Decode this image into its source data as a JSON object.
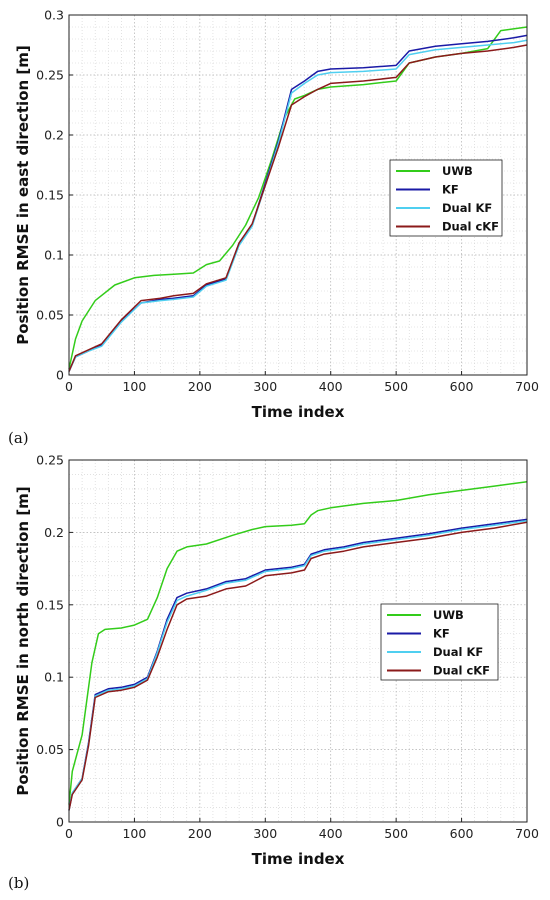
{
  "colors": {
    "UWB": "#33cc1a",
    "KF": "#1a1aa6",
    "Dual KF": "#4fcff0",
    "Dual cKF": "#8b1a1a"
  },
  "chart_data": [
    {
      "panel_label": "(a)",
      "type": "line",
      "xlabel": "Time index",
      "ylabel": "Position RMSE in east  direction [m]",
      "xlim": [
        0,
        700
      ],
      "ylim": [
        0,
        0.3
      ],
      "xticks": [
        "0",
        "100",
        "200",
        "300",
        "400",
        "500",
        "600",
        "700"
      ],
      "yticks": [
        "0",
        "0.05",
        "0.1",
        "0.15",
        "0.2",
        "0.25",
        "0.3"
      ],
      "grid": true,
      "legend_position": "right",
      "legend": [
        "UWB",
        "KF",
        "Dual KF",
        "Dual cKF"
      ],
      "series": [
        {
          "name": "UWB",
          "x": [
            0,
            10,
            20,
            40,
            70,
            100,
            130,
            160,
            190,
            210,
            230,
            250,
            270,
            290,
            310,
            330,
            345,
            360,
            380,
            400,
            450,
            500,
            520,
            560,
            600,
            640,
            660,
            700
          ],
          "y": [
            0.005,
            0.03,
            0.045,
            0.062,
            0.075,
            0.081,
            0.083,
            0.084,
            0.085,
            0.092,
            0.095,
            0.108,
            0.125,
            0.148,
            0.18,
            0.215,
            0.23,
            0.233,
            0.238,
            0.24,
            0.242,
            0.245,
            0.26,
            0.265,
            0.268,
            0.272,
            0.287,
            0.29
          ]
        },
        {
          "name": "KF",
          "x": [
            0,
            10,
            30,
            50,
            80,
            110,
            140,
            160,
            190,
            210,
            240,
            260,
            280,
            300,
            320,
            340,
            360,
            380,
            400,
            450,
            500,
            520,
            560,
            600,
            640,
            680,
            700
          ],
          "y": [
            0.003,
            0.015,
            0.02,
            0.025,
            0.045,
            0.06,
            0.063,
            0.064,
            0.066,
            0.075,
            0.08,
            0.11,
            0.125,
            0.16,
            0.195,
            0.238,
            0.245,
            0.253,
            0.255,
            0.256,
            0.258,
            0.27,
            0.274,
            0.276,
            0.278,
            0.281,
            0.283
          ]
        },
        {
          "name": "Dual KF",
          "x": [
            0,
            10,
            30,
            50,
            80,
            110,
            140,
            160,
            190,
            210,
            240,
            260,
            280,
            300,
            320,
            340,
            360,
            380,
            400,
            450,
            500,
            520,
            560,
            600,
            640,
            680,
            700
          ],
          "y": [
            0.003,
            0.015,
            0.02,
            0.024,
            0.044,
            0.06,
            0.062,
            0.063,
            0.065,
            0.074,
            0.079,
            0.108,
            0.124,
            0.158,
            0.193,
            0.235,
            0.243,
            0.25,
            0.252,
            0.253,
            0.255,
            0.267,
            0.271,
            0.273,
            0.275,
            0.277,
            0.279
          ]
        },
        {
          "name": "Dual cKF",
          "x": [
            0,
            10,
            30,
            50,
            80,
            110,
            140,
            160,
            190,
            210,
            240,
            260,
            280,
            300,
            320,
            340,
            360,
            380,
            400,
            450,
            500,
            520,
            560,
            600,
            640,
            680,
            700
          ],
          "y": [
            0.003,
            0.016,
            0.021,
            0.026,
            0.046,
            0.062,
            0.064,
            0.066,
            0.068,
            0.076,
            0.081,
            0.11,
            0.126,
            0.158,
            0.19,
            0.225,
            0.232,
            0.238,
            0.243,
            0.245,
            0.248,
            0.26,
            0.265,
            0.268,
            0.27,
            0.273,
            0.275
          ]
        }
      ]
    },
    {
      "panel_label": "(b)",
      "type": "line",
      "xlabel": "Time index",
      "ylabel": "Position RMSE in north  direction [m]",
      "xlim": [
        0,
        700
      ],
      "ylim": [
        0,
        0.25
      ],
      "xticks": [
        "0",
        "100",
        "200",
        "300",
        "400",
        "500",
        "600",
        "700"
      ],
      "yticks": [
        "0",
        "0.05",
        "0.1",
        "0.15",
        "0.2",
        "0.25"
      ],
      "grid": true,
      "legend_position": "right",
      "legend": [
        "UWB",
        "KF",
        "Dual KF",
        "Dual cKF"
      ],
      "series": [
        {
          "name": "UWB",
          "x": [
            0,
            5,
            20,
            35,
            45,
            55,
            80,
            100,
            120,
            135,
            150,
            165,
            180,
            210,
            250,
            280,
            300,
            340,
            360,
            370,
            380,
            400,
            450,
            500,
            550,
            600,
            650,
            700
          ],
          "y": [
            0.012,
            0.035,
            0.06,
            0.11,
            0.13,
            0.133,
            0.134,
            0.136,
            0.14,
            0.155,
            0.175,
            0.187,
            0.19,
            0.192,
            0.198,
            0.202,
            0.204,
            0.205,
            0.206,
            0.212,
            0.215,
            0.217,
            0.22,
            0.222,
            0.226,
            0.229,
            0.232,
            0.235
          ]
        },
        {
          "name": "KF",
          "x": [
            0,
            5,
            20,
            30,
            40,
            60,
            80,
            100,
            120,
            135,
            150,
            165,
            180,
            210,
            240,
            270,
            300,
            340,
            360,
            370,
            390,
            420,
            450,
            500,
            550,
            600,
            650,
            700
          ],
          "y": [
            0.008,
            0.02,
            0.03,
            0.055,
            0.088,
            0.092,
            0.093,
            0.095,
            0.1,
            0.118,
            0.14,
            0.155,
            0.158,
            0.161,
            0.166,
            0.168,
            0.174,
            0.176,
            0.178,
            0.185,
            0.188,
            0.19,
            0.193,
            0.196,
            0.199,
            0.203,
            0.206,
            0.209
          ]
        },
        {
          "name": "Dual KF",
          "x": [
            0,
            5,
            20,
            30,
            40,
            60,
            80,
            100,
            120,
            135,
            150,
            165,
            180,
            210,
            240,
            270,
            300,
            340,
            360,
            370,
            390,
            420,
            450,
            500,
            550,
            600,
            650,
            700
          ],
          "y": [
            0.008,
            0.02,
            0.03,
            0.054,
            0.087,
            0.091,
            0.092,
            0.094,
            0.099,
            0.117,
            0.138,
            0.153,
            0.156,
            0.16,
            0.165,
            0.167,
            0.173,
            0.175,
            0.177,
            0.184,
            0.187,
            0.189,
            0.192,
            0.195,
            0.198,
            0.202,
            0.205,
            0.208
          ]
        },
        {
          "name": "Dual cKF",
          "x": [
            0,
            5,
            20,
            30,
            40,
            60,
            80,
            100,
            120,
            135,
            150,
            165,
            180,
            210,
            240,
            270,
            300,
            340,
            360,
            370,
            390,
            420,
            450,
            500,
            550,
            600,
            650,
            700
          ],
          "y": [
            0.008,
            0.019,
            0.029,
            0.053,
            0.086,
            0.09,
            0.091,
            0.093,
            0.098,
            0.114,
            0.133,
            0.15,
            0.154,
            0.156,
            0.161,
            0.163,
            0.17,
            0.172,
            0.174,
            0.182,
            0.185,
            0.187,
            0.19,
            0.193,
            0.196,
            0.2,
            0.203,
            0.207
          ]
        }
      ]
    }
  ]
}
